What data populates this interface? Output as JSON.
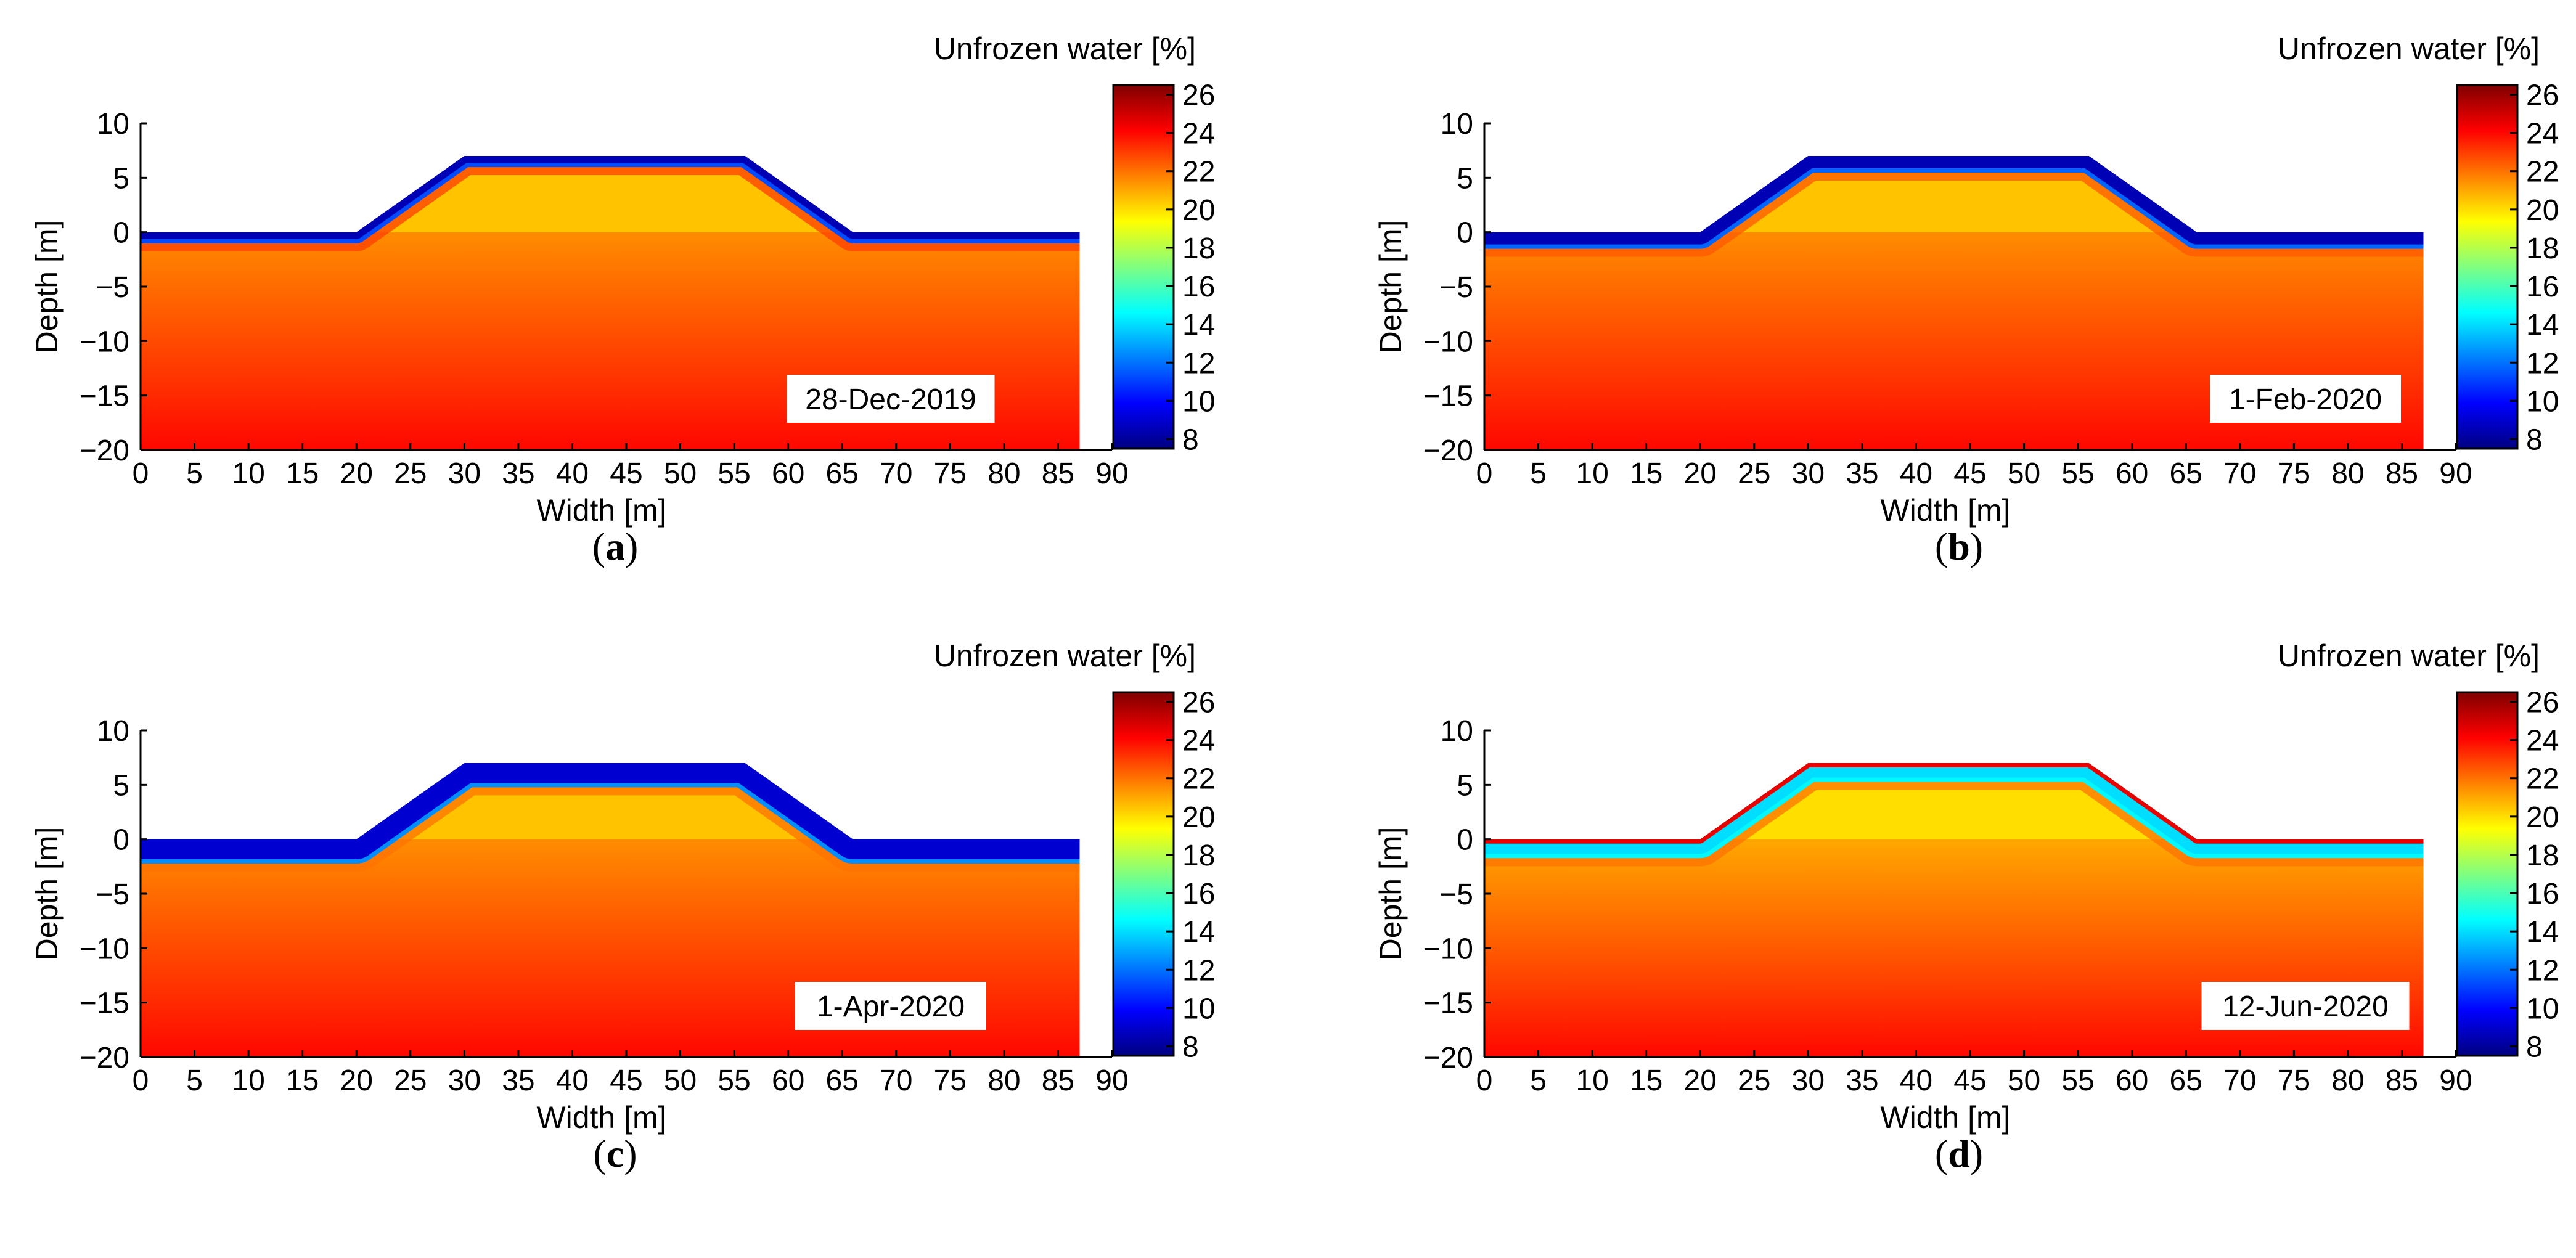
{
  "colors": {
    "scale": [
      "#00007f",
      "#0000ff",
      "#0080ff",
      "#00ffff",
      "#80ff80",
      "#ffff00",
      "#ff8000",
      "#ff0000",
      "#7f0000"
    ],
    "background": "#ffffff"
  },
  "chart_data": [
    {
      "type": "heatmap",
      "panel": "(a)",
      "panel_letter": "a",
      "date_label": "28-Dec-2019",
      "xlabel": "Width [m]",
      "ylabel": "Depth [m]",
      "colorbar_label": "Unfrozen water [%]",
      "xlim": [
        0,
        90
      ],
      "ylim": [
        -20,
        10
      ],
      "x_ticks": [
        0,
        5,
        10,
        15,
        20,
        25,
        30,
        35,
        40,
        45,
        50,
        55,
        60,
        65,
        70,
        75,
        80,
        85,
        90
      ],
      "y_ticks": [
        10,
        5,
        0,
        -5,
        -10,
        -15,
        -20
      ],
      "colorbar_range": [
        7.5,
        26.5
      ],
      "colorbar_ticks": [
        26,
        24,
        22,
        20,
        18,
        16,
        14,
        12,
        10,
        8
      ],
      "domain_outline": [
        [
          0,
          -20
        ],
        [
          0,
          0
        ],
        [
          20,
          0
        ],
        [
          30,
          7
        ],
        [
          56,
          7
        ],
        [
          66,
          0
        ],
        [
          87,
          0
        ],
        [
          87,
          -20
        ]
      ],
      "frozen_layer_thickness_m": 0.8,
      "surface_values": {
        "top": 8.5,
        "bottom": 11
      },
      "subsurface_band_value": 23,
      "base_value_at_0m": 21.5,
      "base_value_at_minus20m": 23.5,
      "embankment_core_value": 20.5,
      "surface_crust": false
    },
    {
      "type": "heatmap",
      "panel": "(b)",
      "panel_letter": "b",
      "date_label": "1-Feb-2020",
      "xlabel": "Width [m]",
      "ylabel": "Depth [m]",
      "colorbar_label": "Unfrozen water [%]",
      "xlim": [
        0,
        90
      ],
      "ylim": [
        -20,
        10
      ],
      "x_ticks": [
        0,
        5,
        10,
        15,
        20,
        25,
        30,
        35,
        40,
        45,
        50,
        55,
        60,
        65,
        70,
        75,
        80,
        85,
        90
      ],
      "y_ticks": [
        10,
        5,
        0,
        -5,
        -10,
        -15,
        -20
      ],
      "colorbar_range": [
        7.5,
        26.5
      ],
      "colorbar_ticks": [
        26,
        24,
        22,
        20,
        18,
        16,
        14,
        12,
        10,
        8
      ],
      "domain_outline": [
        [
          0,
          -20
        ],
        [
          0,
          0
        ],
        [
          20,
          0
        ],
        [
          30,
          7
        ],
        [
          56,
          7
        ],
        [
          66,
          0
        ],
        [
          87,
          0
        ],
        [
          87,
          -20
        ]
      ],
      "frozen_layer_thickness_m": 1.3,
      "surface_values": {
        "top": 8.5,
        "bottom": 12
      },
      "subsurface_band_value": 22.5,
      "base_value_at_0m": 21.5,
      "base_value_at_minus20m": 23.5,
      "embankment_core_value": 20.5,
      "surface_crust": false
    },
    {
      "type": "heatmap",
      "panel": "(c)",
      "panel_letter": "c",
      "date_label": "1-Apr-2020",
      "xlabel": "Width [m]",
      "ylabel": "Depth [m]",
      "colorbar_label": "Unfrozen water [%]",
      "xlim": [
        0,
        90
      ],
      "ylim": [
        -20,
        10
      ],
      "x_ticks": [
        0,
        5,
        10,
        15,
        20,
        25,
        30,
        35,
        40,
        45,
        50,
        55,
        60,
        65,
        70,
        75,
        80,
        85,
        90
      ],
      "y_ticks": [
        10,
        5,
        0,
        -5,
        -10,
        -15,
        -20
      ],
      "colorbar_range": [
        7.5,
        26.5
      ],
      "colorbar_ticks": [
        26,
        24,
        22,
        20,
        18,
        16,
        14,
        12,
        10,
        8
      ],
      "domain_outline": [
        [
          0,
          -20
        ],
        [
          0,
          0
        ],
        [
          20,
          0
        ],
        [
          30,
          7
        ],
        [
          56,
          7
        ],
        [
          66,
          0
        ],
        [
          87,
          0
        ],
        [
          87,
          -20
        ]
      ],
      "frozen_layer_thickness_m": 2.0,
      "surface_values": {
        "top": 9,
        "bottom": 13
      },
      "subsurface_band_value": 22,
      "base_value_at_0m": 21.5,
      "base_value_at_minus20m": 23.5,
      "embankment_core_value": 20.5,
      "surface_crust": false
    },
    {
      "type": "heatmap",
      "panel": "(d)",
      "panel_letter": "d",
      "date_label": "12-Jun-2020",
      "xlabel": "Width [m]",
      "ylabel": "Depth [m]",
      "colorbar_label": "Unfrozen water [%]",
      "xlim": [
        0,
        90
      ],
      "ylim": [
        -20,
        10
      ],
      "x_ticks": [
        0,
        5,
        10,
        15,
        20,
        25,
        30,
        35,
        40,
        45,
        50,
        55,
        60,
        65,
        70,
        75,
        80,
        85,
        90
      ],
      "y_ticks": [
        10,
        5,
        0,
        -5,
        -10,
        -15,
        -20
      ],
      "colorbar_range": [
        7.5,
        26.5
      ],
      "colorbar_ticks": [
        26,
        24,
        22,
        20,
        18,
        16,
        14,
        12,
        10,
        8
      ],
      "domain_outline": [
        [
          0,
          -20
        ],
        [
          0,
          0
        ],
        [
          20,
          0
        ],
        [
          30,
          7
        ],
        [
          56,
          7
        ],
        [
          66,
          0
        ],
        [
          87,
          0
        ],
        [
          87,
          -20
        ]
      ],
      "frozen_layer_thickness_m": 1.5,
      "surface_values": {
        "top": 14,
        "bottom": 12
      },
      "subsurface_band_value": 22,
      "base_value_at_0m": 21,
      "base_value_at_minus20m": 23.5,
      "embankment_core_value": 20,
      "surface_crust": true,
      "surface_crust_value": 24.5
    }
  ]
}
